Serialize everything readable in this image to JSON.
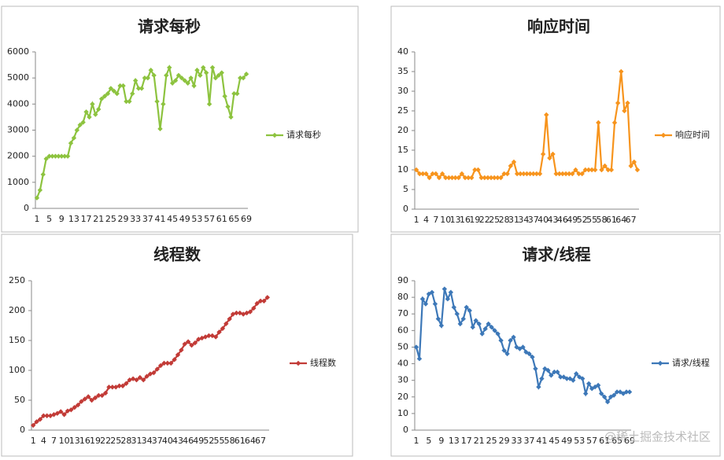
{
  "chart_data": [
    {
      "type": "line",
      "title": "请求每秒",
      "categories": [
        "1",
        null,
        null,
        null,
        "5",
        null,
        null,
        null,
        "9",
        null,
        null,
        null,
        "13",
        null,
        null,
        null,
        "17",
        null,
        null,
        null,
        "21",
        null,
        null,
        null,
        "25",
        null,
        null,
        null,
        "29",
        null,
        null,
        null,
        "33",
        null,
        null,
        null,
        "37",
        null,
        null,
        null,
        "41",
        null,
        null,
        null,
        "45",
        null,
        null,
        null,
        "49",
        null,
        null,
        null,
        "53",
        null,
        null,
        null,
        "57",
        null,
        null,
        null,
        "61",
        null,
        null,
        null,
        "65",
        null,
        null,
        null,
        "69"
      ],
      "series": [
        {
          "name": "请求每秒",
          "color": "#8dc33f",
          "values": [
            400,
            700,
            1300,
            1900,
            2000,
            2000,
            2000,
            2000,
            2000,
            2000,
            2000,
            2500,
            2700,
            3000,
            3200,
            3300,
            3700,
            3500,
            4000,
            3600,
            3800,
            4200,
            4300,
            4400,
            4600,
            4500,
            4400,
            4700,
            4700,
            4100,
            4100,
            4400,
            4900,
            4600,
            4600,
            5000,
            5000,
            5300,
            5100,
            4100,
            3050,
            4000,
            5100,
            5400,
            4800,
            4900,
            5100,
            5000,
            4900,
            4800,
            5000,
            4700,
            5300,
            5100,
            5400,
            5200,
            4000,
            5400,
            5000,
            5100,
            5200,
            4300,
            3900,
            3500,
            4400,
            4400,
            5000,
            5000,
            5150
          ]
        }
      ],
      "ylim": [
        0,
        6000
      ],
      "yticks": [
        0,
        1000,
        2000,
        3000,
        4000,
        5000,
        6000
      ]
    },
    {
      "type": "line",
      "title": "响应时间",
      "categories": [
        "1",
        null,
        null,
        "4",
        null,
        null,
        "7",
        null,
        null,
        "10",
        null,
        null,
        "13",
        null,
        null,
        "16",
        null,
        null,
        "19",
        null,
        null,
        "22",
        null,
        null,
        "25",
        null,
        null,
        "28",
        null,
        null,
        "31",
        null,
        null,
        "34",
        null,
        null,
        "37",
        null,
        null,
        "40",
        null,
        null,
        "43",
        null,
        null,
        "46",
        null,
        null,
        "49",
        null,
        null,
        "52",
        null,
        null,
        "55",
        null,
        null,
        "58",
        null,
        null,
        "61",
        null,
        null,
        "64",
        null,
        null,
        "67",
        null,
        null
      ],
      "series": [
        {
          "name": "响应时间",
          "color": "#f7941d",
          "values": [
            10,
            9,
            9,
            9,
            8,
            9,
            9,
            8,
            9,
            8,
            8,
            8,
            8,
            8,
            9,
            8,
            8,
            8,
            10,
            10,
            8,
            8,
            8,
            8,
            8,
            8,
            8,
            9,
            9,
            11,
            12,
            9,
            9,
            9,
            9,
            9,
            9,
            9,
            9,
            14,
            24,
            13,
            14,
            9,
            9,
            9,
            9,
            9,
            9,
            10,
            9,
            9,
            10,
            10,
            10,
            10,
            22,
            10,
            11,
            10,
            10,
            22,
            27,
            35,
            25,
            27,
            11,
            12,
            10
          ]
        }
      ],
      "ylim": [
        0,
        40
      ],
      "yticks": [
        0,
        5,
        10,
        15,
        20,
        25,
        30,
        35,
        40
      ]
    },
    {
      "type": "line",
      "title": "线程数",
      "categories": [
        "1",
        null,
        null,
        "4",
        null,
        null,
        "7",
        null,
        null,
        "10",
        null,
        null,
        "13",
        null,
        null,
        "16",
        null,
        null,
        "19",
        null,
        null,
        "22",
        null,
        null,
        "25",
        null,
        null,
        "28",
        null,
        null,
        "31",
        null,
        null,
        "34",
        null,
        null,
        "37",
        null,
        null,
        "40",
        null,
        null,
        "43",
        null,
        null,
        "46",
        null,
        null,
        "49",
        null,
        null,
        "52",
        null,
        null,
        "55",
        null,
        null,
        "58",
        null,
        null,
        "61",
        null,
        null,
        "64",
        null,
        null,
        "67",
        null,
        null
      ],
      "series": [
        {
          "name": "线程数",
          "color": "#c23b37",
          "values": [
            8,
            14,
            18,
            24,
            24,
            24,
            26,
            28,
            31,
            26,
            32,
            34,
            38,
            42,
            48,
            52,
            56,
            50,
            54,
            58,
            58,
            62,
            72,
            72,
            72,
            74,
            74,
            78,
            84,
            86,
            84,
            88,
            84,
            90,
            94,
            96,
            102,
            108,
            112,
            112,
            112,
            118,
            126,
            134,
            144,
            148,
            142,
            146,
            152,
            154,
            156,
            158,
            158,
            156,
            164,
            170,
            178,
            186,
            194,
            196,
            196,
            194,
            196,
            198,
            204,
            212,
            216,
            216,
            222
          ]
        }
      ],
      "ylim": [
        0,
        250
      ],
      "yticks": [
        0,
        50,
        100,
        150,
        200,
        250
      ]
    },
    {
      "type": "line",
      "title": "请求/线程",
      "categories": [
        "1",
        null,
        null,
        null,
        "5",
        null,
        null,
        null,
        "9",
        null,
        null,
        null,
        "13",
        null,
        null,
        null,
        "17",
        null,
        null,
        null,
        "21",
        null,
        null,
        null,
        "25",
        null,
        null,
        null,
        "29",
        null,
        null,
        null,
        "33",
        null,
        null,
        null,
        "37",
        null,
        null,
        null,
        "41",
        null,
        null,
        null,
        "45",
        null,
        null,
        null,
        "49",
        null,
        null,
        null,
        "53",
        null,
        null,
        null,
        "57",
        null,
        null,
        null,
        "61",
        null,
        null,
        null,
        "65",
        null,
        null,
        null,
        "69"
      ],
      "series": [
        {
          "name": "请求/线程",
          "color": "#3d78b8",
          "values": [
            50,
            43,
            79,
            76,
            82,
            83,
            76,
            67,
            63,
            85,
            79,
            83,
            74,
            70,
            64,
            67,
            74,
            72,
            62,
            66,
            64,
            58,
            61,
            64,
            62,
            60,
            58,
            54,
            48,
            46,
            54,
            56,
            50,
            49,
            50,
            47,
            46,
            44,
            37,
            26,
            31,
            37,
            36,
            33,
            35,
            35,
            32,
            32,
            31,
            31,
            30,
            34,
            32,
            31,
            22,
            28,
            25,
            26,
            27,
            22,
            20,
            17,
            20,
            21,
            23,
            23,
            22,
            23,
            23
          ]
        }
      ],
      "ylim": [
        0,
        90
      ],
      "yticks": [
        0,
        10,
        20,
        30,
        40,
        50,
        60,
        70,
        80,
        90
      ]
    }
  ],
  "watermark": "@稀土掘金技术社区"
}
